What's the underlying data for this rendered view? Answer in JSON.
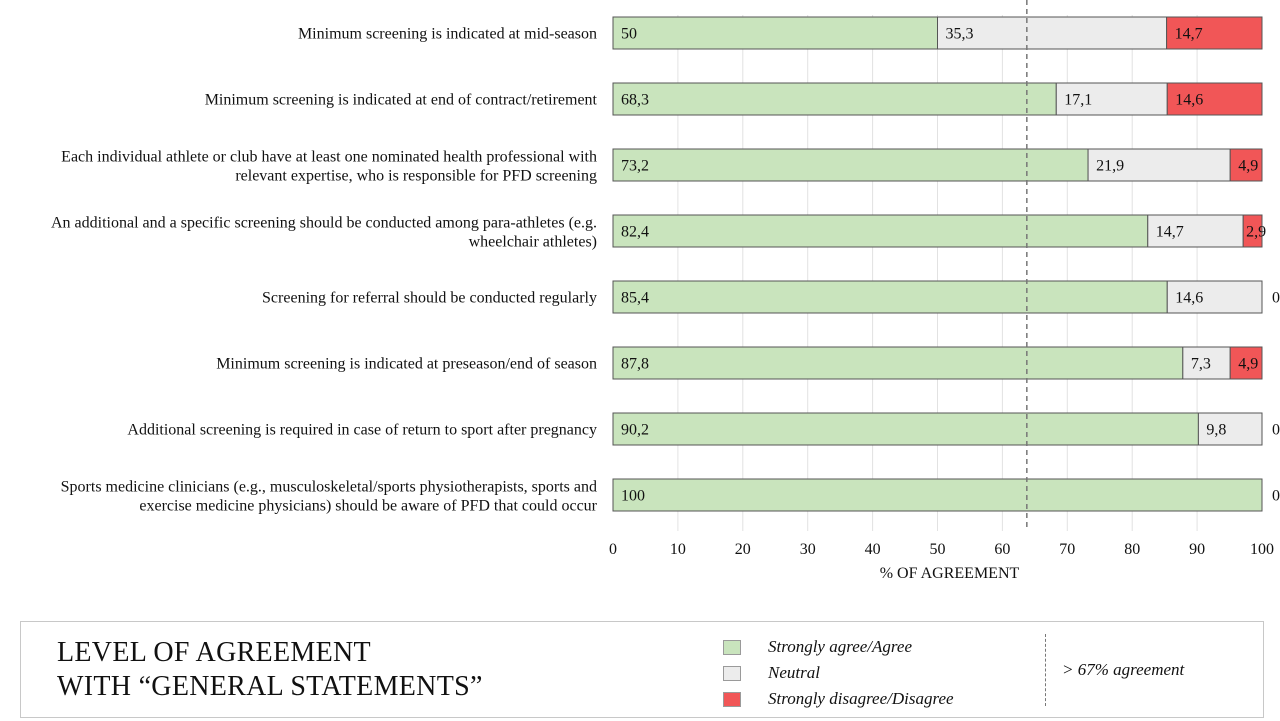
{
  "chart_data": {
    "type": "bar",
    "orientation": "horizontal",
    "stacked": true,
    "categories": [
      [
        "Minimum screening is indicated at mid-season"
      ],
      [
        "Minimum screening is indicated at end of contract/retirement"
      ],
      [
        "Each individual athlete or club have at least one nominated health professional with",
        "relevant expertise, who is responsible for PFD screening"
      ],
      [
        "An additional and a specific screening should be conducted among para-athletes (e.g.",
        "wheelchair athletes)"
      ],
      [
        "Screening for referral should be conducted regularly"
      ],
      [
        "Minimum screening is indicated at preseason/end of season"
      ],
      [
        "Additional screening is required in case of return to sport after pregnancy"
      ],
      [
        "Sports medicine clinicians (e.g., musculoskeletal/sports physiotherapists, sports and",
        "exercise medicine physicians) should be aware of PFD that could occur"
      ]
    ],
    "series": [
      {
        "name": "Strongly agree/Agree",
        "color": "#c9e4bd",
        "values": [
          50,
          68.3,
          73.2,
          82.4,
          85.4,
          87.8,
          90.2,
          100
        ],
        "labels": [
          "50",
          "68,3",
          "73,2",
          "82,4",
          "85,4",
          "87,8",
          "90,2",
          "100"
        ]
      },
      {
        "name": "Neutral",
        "color": "#ececec",
        "values": [
          35.3,
          17.1,
          21.9,
          14.7,
          14.6,
          7.3,
          9.8,
          0
        ],
        "labels": [
          "35,3",
          "17,1",
          "21,9",
          "14,7",
          "14,6",
          "7,3",
          "9,8",
          ""
        ]
      },
      {
        "name": "Strongly disagree/Disagree",
        "color": "#f15657",
        "values": [
          14.7,
          14.6,
          4.9,
          2.9,
          0,
          4.9,
          0,
          0
        ],
        "labels": [
          "14,7",
          "14,6",
          "4,9",
          "2,9",
          "0",
          "4,9",
          "0",
          "0"
        ]
      }
    ],
    "xlabel": "% OF AGREEMENT",
    "xlim": [
      0,
      100
    ],
    "xticks": [
      0,
      10,
      20,
      30,
      40,
      50,
      60,
      70,
      80,
      90,
      100
    ],
    "grid": "vertical",
    "threshold": {
      "value": 67,
      "label": "> 67% agreement",
      "style": "dashed"
    },
    "legend": {
      "title_lines": [
        "LEVEL OF AGREEMENT",
        "WITH “GENERAL STATEMENTS”"
      ],
      "placement": "bottom"
    }
  }
}
